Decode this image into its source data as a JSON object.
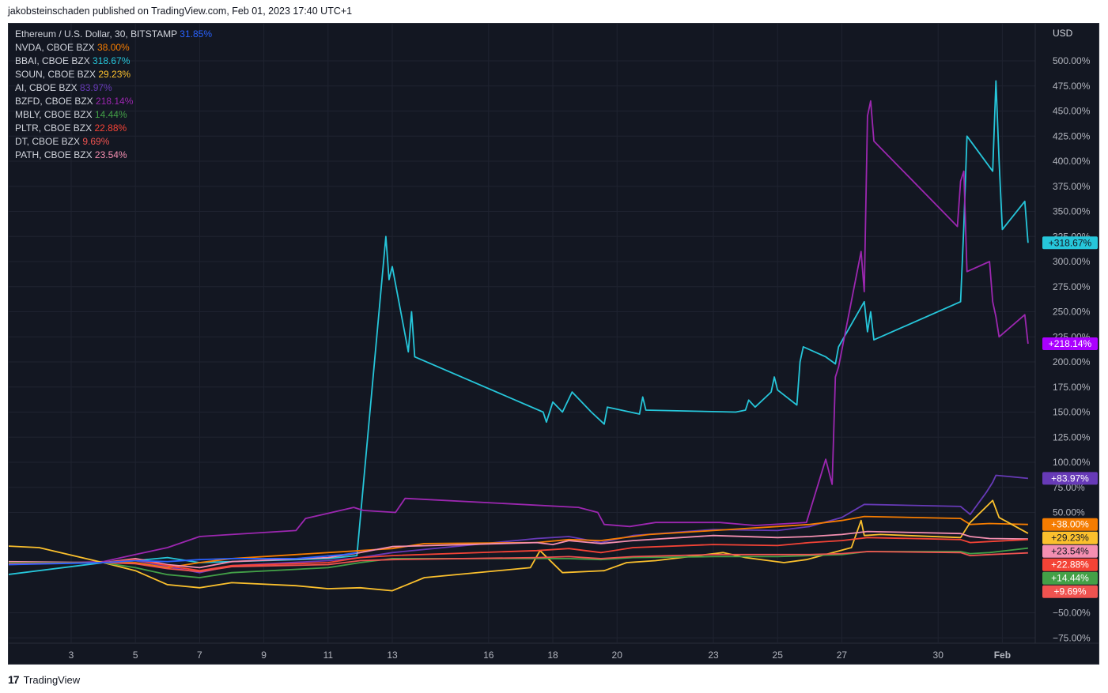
{
  "header": {
    "published": "jakobsteinschaden published on TradingView.com, Feb 01, 2023 17:40 UTC+1"
  },
  "footer": {
    "brand": "TradingView",
    "logo_text": "17"
  },
  "chart_data": {
    "type": "line",
    "currency_label": "USD",
    "yticks": [
      "500.00%",
      "475.00%",
      "450.00%",
      "425.00%",
      "400.00%",
      "375.00%",
      "350.00%",
      "325.00%",
      "300.00%",
      "275.00%",
      "250.00%",
      "225.00%",
      "200.00%",
      "175.00%",
      "150.00%",
      "125.00%",
      "100.00%",
      "75.00%",
      "50.00%",
      "−50.00%",
      "−75.00%"
    ],
    "ytick_values": [
      500,
      475,
      450,
      425,
      400,
      375,
      350,
      325,
      300,
      275,
      250,
      225,
      200,
      175,
      150,
      125,
      100,
      75,
      50,
      -50,
      -75
    ],
    "xticks": [
      "3",
      "5",
      "7",
      "9",
      "11",
      "13",
      "16",
      "18",
      "20",
      "23",
      "25",
      "27",
      "30",
      "Feb"
    ],
    "xtick_pos": [
      3,
      5,
      7,
      9,
      11,
      13,
      16,
      18,
      20,
      23,
      25,
      27,
      30,
      32
    ],
    "grid": true,
    "legend_position": "top-left",
    "legend": [
      {
        "name": "Ethereum / U.S. Dollar, 30, BITSTAMP",
        "value": "31.85%",
        "color": "#2962ff"
      },
      {
        "name": "NVDA, CBOE BZX",
        "value": "38.00%",
        "color": "#f57c00"
      },
      {
        "name": "BBAI, CBOE BZX",
        "value": "318.67%",
        "color": "#26c6da"
      },
      {
        "name": "SOUN, CBOE BZX",
        "value": "29.23%",
        "color": "#fbc02d"
      },
      {
        "name": "AI, CBOE BZX",
        "value": "83.97%",
        "color": "#673ab7"
      },
      {
        "name": "BZFD, CBOE BZX",
        "value": "218.14%",
        "color": "#9c27b0"
      },
      {
        "name": "MBLY, CBOE BZX",
        "value": "14.44%",
        "color": "#43a047"
      },
      {
        "name": "PLTR, CBOE BZX",
        "value": "22.88%",
        "color": "#f44336"
      },
      {
        "name": "DT, CBOE BZX",
        "value": "9.69%",
        "color": "#ef5350"
      },
      {
        "name": "PATH, CBOE BZX",
        "value": "23.54%",
        "color": "#f48fb1"
      }
    ],
    "price_labels": [
      {
        "text": "+318.67%",
        "value": 318.67,
        "color": "#26c6da",
        "text_color": "#131722"
      },
      {
        "text": "+218.14%",
        "value": 218.14,
        "color": "#aa00ff",
        "text_color": "#ffffff"
      },
      {
        "text": "+83.97%",
        "value": 83.97,
        "color": "#673ab7",
        "text_color": "#ffffff"
      },
      {
        "text": "+38.00%",
        "value": 38.0,
        "color": "#f57c00",
        "text_color": "#ffffff"
      },
      {
        "text": "+29.23%",
        "value": 29.23,
        "color": "#fbc02d",
        "text_color": "#131722"
      },
      {
        "text": "+23.54%",
        "value": 23.54,
        "color": "#f48fb1",
        "text_color": "#131722"
      },
      {
        "text": "+22.88%",
        "value": 22.88,
        "color": "#f44336",
        "text_color": "#ffffff"
      },
      {
        "text": "+14.44%",
        "value": 14.44,
        "color": "#43a047",
        "text_color": "#ffffff"
      },
      {
        "text": "+9.69%",
        "value": 9.69,
        "color": "#ef5350",
        "text_color": "#ffffff"
      }
    ],
    "series": [
      {
        "name": "BBAI, CBOE BZX",
        "color": "#26c6da",
        "points": [
          [
            1,
            -12
          ],
          [
            4,
            0
          ],
          [
            5,
            2
          ],
          [
            6,
            5
          ],
          [
            7,
            0
          ],
          [
            8,
            1
          ],
          [
            11,
            4
          ],
          [
            11.9,
            7
          ],
          [
            12.8,
            325
          ],
          [
            12.9,
            282
          ],
          [
            13.0,
            295
          ],
          [
            13.5,
            210
          ],
          [
            13.6,
            250
          ],
          [
            13.7,
            205
          ],
          [
            17.7,
            150
          ],
          [
            17.8,
            140
          ],
          [
            18.0,
            160
          ],
          [
            18.3,
            150
          ],
          [
            18.6,
            170
          ],
          [
            19.2,
            150
          ],
          [
            19.6,
            138
          ],
          [
            19.7,
            155
          ],
          [
            20.7,
            148
          ],
          [
            20.8,
            165
          ],
          [
            20.9,
            152
          ],
          [
            23.7,
            150
          ],
          [
            24.0,
            152
          ],
          [
            24.1,
            162
          ],
          [
            24.3,
            155
          ],
          [
            24.8,
            170
          ],
          [
            24.9,
            185
          ],
          [
            25.0,
            172
          ],
          [
            25.6,
            157
          ],
          [
            25.7,
            200
          ],
          [
            25.8,
            215
          ],
          [
            26.5,
            205
          ],
          [
            26.8,
            198
          ],
          [
            26.9,
            215
          ],
          [
            27.7,
            260
          ],
          [
            27.8,
            230
          ],
          [
            27.9,
            250
          ],
          [
            28.0,
            222
          ],
          [
            30.7,
            260
          ],
          [
            30.8,
            335
          ],
          [
            30.9,
            425
          ],
          [
            31.7,
            390
          ],
          [
            31.8,
            480
          ],
          [
            31.9,
            400
          ],
          [
            32.0,
            332
          ],
          [
            32.7,
            360
          ],
          [
            32.8,
            318.67
          ]
        ]
      },
      {
        "name": "BZFD, CBOE BZX",
        "color": "#9c27b0",
        "points": [
          [
            1,
            -2
          ],
          [
            4,
            1
          ],
          [
            5,
            8
          ],
          [
            6,
            15
          ],
          [
            7,
            26
          ],
          [
            8,
            28
          ],
          [
            10,
            32
          ],
          [
            10.3,
            44
          ],
          [
            11.8,
            55
          ],
          [
            12.1,
            52
          ],
          [
            13.1,
            50
          ],
          [
            13.4,
            64
          ],
          [
            18.8,
            55
          ],
          [
            19.4,
            50
          ],
          [
            19.6,
            38
          ],
          [
            20.4,
            36
          ],
          [
            21.2,
            40
          ],
          [
            23.2,
            40
          ],
          [
            24.3,
            37
          ],
          [
            25.9,
            40
          ],
          [
            26.5,
            103
          ],
          [
            26.7,
            78
          ],
          [
            26.8,
            185
          ],
          [
            26.9,
            195
          ],
          [
            27.6,
            310
          ],
          [
            27.7,
            270
          ],
          [
            27.8,
            445
          ],
          [
            27.9,
            460
          ],
          [
            28.0,
            420
          ],
          [
            30.6,
            335
          ],
          [
            30.7,
            380
          ],
          [
            30.8,
            390
          ],
          [
            30.9,
            290
          ],
          [
            31.6,
            300
          ],
          [
            31.7,
            260
          ],
          [
            31.8,
            245
          ],
          [
            31.9,
            225
          ],
          [
            32.7,
            247
          ],
          [
            32.8,
            218.14
          ]
        ]
      },
      {
        "name": "AI, CBOE BZX",
        "color": "#673ab7",
        "points": [
          [
            1,
            0
          ],
          [
            4,
            0
          ],
          [
            5,
            2
          ],
          [
            6,
            -4
          ],
          [
            7,
            -10
          ],
          [
            8,
            -3
          ],
          [
            11,
            2
          ],
          [
            12,
            5
          ],
          [
            13,
            10
          ],
          [
            17.5,
            24
          ],
          [
            18.5,
            26
          ],
          [
            19.5,
            20
          ],
          [
            20.5,
            27
          ],
          [
            23,
            33
          ],
          [
            25,
            32
          ],
          [
            26,
            36
          ],
          [
            27,
            45
          ],
          [
            27.7,
            58
          ],
          [
            30.7,
            56
          ],
          [
            31.0,
            48
          ],
          [
            31.5,
            70
          ],
          [
            31.7,
            80
          ],
          [
            31.8,
            87
          ],
          [
            32.8,
            83.97
          ]
        ]
      },
      {
        "name": "NVDA, CBOE BZX",
        "color": "#f57c00",
        "points": [
          [
            1,
            -1
          ],
          [
            4,
            0
          ],
          [
            5,
            0
          ],
          [
            6,
            -5
          ],
          [
            7,
            0
          ],
          [
            8,
            4
          ],
          [
            10,
            8
          ],
          [
            12,
            12
          ],
          [
            13,
            14
          ],
          [
            14,
            19
          ],
          [
            17.5,
            20
          ],
          [
            18.5,
            23
          ],
          [
            19.5,
            22
          ],
          [
            21,
            28
          ],
          [
            23,
            32
          ],
          [
            25,
            36
          ],
          [
            26,
            38
          ],
          [
            27,
            42
          ],
          [
            27.7,
            46
          ],
          [
            30.7,
            44
          ],
          [
            31,
            38
          ],
          [
            31.6,
            39
          ],
          [
            32.8,
            38.0
          ]
        ]
      },
      {
        "name": "SOUN, CBOE BZX",
        "color": "#fbc02d",
        "points": [
          [
            0,
            18
          ],
          [
            2,
            15
          ],
          [
            4,
            0
          ],
          [
            5,
            -8
          ],
          [
            6,
            -22
          ],
          [
            7,
            -25
          ],
          [
            8,
            -20
          ],
          [
            10,
            -23
          ],
          [
            11,
            -26
          ],
          [
            12,
            -25
          ],
          [
            13,
            -28
          ],
          [
            14,
            -15
          ],
          [
            17.3,
            -5
          ],
          [
            17.6,
            12
          ],
          [
            18.3,
            -10
          ],
          [
            19.6,
            -8
          ],
          [
            20.3,
            0
          ],
          [
            21.2,
            2
          ],
          [
            23.3,
            10
          ],
          [
            24.0,
            5
          ],
          [
            25.2,
            0
          ],
          [
            25.9,
            3
          ],
          [
            27.3,
            15
          ],
          [
            27.6,
            42
          ],
          [
            27.7,
            27
          ],
          [
            28.2,
            28
          ],
          [
            30.7,
            25
          ],
          [
            31.0,
            40
          ],
          [
            31.7,
            62
          ],
          [
            31.9,
            45
          ],
          [
            32.8,
            29.23
          ]
        ]
      },
      {
        "name": "PATH, CBOE BZX",
        "color": "#f48fb1",
        "points": [
          [
            1,
            1
          ],
          [
            4,
            0
          ],
          [
            5,
            4
          ],
          [
            6,
            -2
          ],
          [
            7,
            -5
          ],
          [
            8,
            1
          ],
          [
            11,
            5
          ],
          [
            12,
            10
          ],
          [
            13,
            16
          ],
          [
            17.5,
            20
          ],
          [
            18.0,
            18
          ],
          [
            18.5,
            22
          ],
          [
            19.5,
            19
          ],
          [
            20.5,
            22
          ],
          [
            23,
            27
          ],
          [
            25,
            25
          ],
          [
            26,
            26
          ],
          [
            27,
            28
          ],
          [
            27.8,
            31
          ],
          [
            30.7,
            29
          ],
          [
            31,
            26
          ],
          [
            31.6,
            24
          ],
          [
            32.8,
            23.54
          ]
        ]
      },
      {
        "name": "PLTR, CBOE BZX",
        "color": "#f44336",
        "points": [
          [
            1,
            0
          ],
          [
            4,
            0
          ],
          [
            5,
            3
          ],
          [
            6,
            -3
          ],
          [
            7,
            -8
          ],
          [
            8,
            -3
          ],
          [
            11,
            0
          ],
          [
            12,
            5
          ],
          [
            13,
            7
          ],
          [
            17.5,
            12
          ],
          [
            18.5,
            14
          ],
          [
            19.5,
            10
          ],
          [
            20.5,
            15
          ],
          [
            23,
            18
          ],
          [
            25,
            17
          ],
          [
            26,
            20
          ],
          [
            27,
            22
          ],
          [
            27.8,
            25
          ],
          [
            30.7,
            23
          ],
          [
            31,
            20
          ],
          [
            31.6,
            21
          ],
          [
            32.8,
            22.88
          ]
        ]
      },
      {
        "name": "MBLY, CBOE BZX",
        "color": "#43a047",
        "points": [
          [
            1,
            0
          ],
          [
            4,
            0
          ],
          [
            5,
            -5
          ],
          [
            6,
            -12
          ],
          [
            7,
            -15
          ],
          [
            8,
            -10
          ],
          [
            11,
            -5
          ],
          [
            12,
            0
          ],
          [
            13,
            4
          ],
          [
            17.5,
            4
          ],
          [
            18.5,
            4
          ],
          [
            19.5,
            3
          ],
          [
            20.5,
            5
          ],
          [
            23,
            6
          ],
          [
            25,
            6
          ],
          [
            26,
            7
          ],
          [
            27,
            8
          ],
          [
            27.8,
            11
          ],
          [
            30.7,
            11
          ],
          [
            31,
            9
          ],
          [
            31.6,
            10
          ],
          [
            32.8,
            14.44
          ]
        ]
      },
      {
        "name": "DT, CBOE BZX",
        "color": "#ef5350",
        "points": [
          [
            1,
            -1
          ],
          [
            4,
            0
          ],
          [
            5,
            -1
          ],
          [
            6,
            -6
          ],
          [
            7,
            -9
          ],
          [
            8,
            -4
          ],
          [
            11,
            -2
          ],
          [
            12,
            2
          ],
          [
            13,
            3
          ],
          [
            17.5,
            5
          ],
          [
            18.5,
            6
          ],
          [
            19.5,
            4
          ],
          [
            20.5,
            6
          ],
          [
            23,
            8
          ],
          [
            25,
            8
          ],
          [
            26,
            8
          ],
          [
            27,
            9
          ],
          [
            27.8,
            11
          ],
          [
            30.7,
            10
          ],
          [
            31,
            7
          ],
          [
            31.6,
            8
          ],
          [
            32.8,
            9.69
          ]
        ]
      },
      {
        "name": "Ethereum / U.S. Dollar, 30, BITSTAMP",
        "color": "#2962ff",
        "points": [
          [
            1,
            -2
          ],
          [
            4,
            0
          ],
          [
            5,
            2
          ],
          [
            6,
            1
          ],
          [
            7,
            3
          ],
          [
            8,
            4
          ],
          [
            10,
            4
          ],
          [
            11.5,
            8
          ],
          [
            11.9,
            10
          ]
        ]
      }
    ]
  }
}
